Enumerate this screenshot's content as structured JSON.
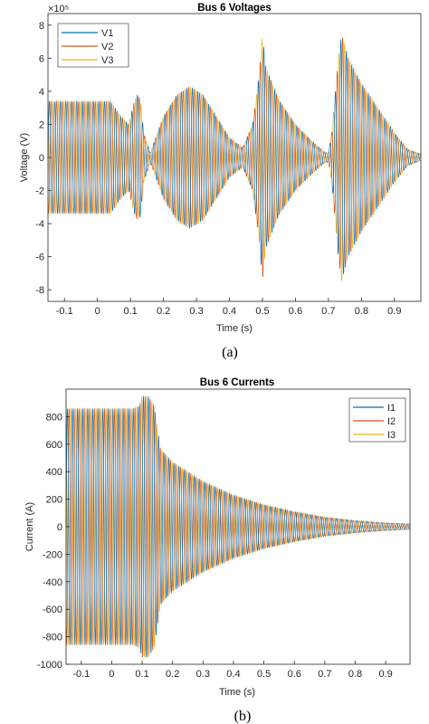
{
  "colors": {
    "series1": "#0072BD",
    "series2": "#D95319",
    "series3": "#EDB120",
    "axis": "#262626"
  },
  "chart_data": [
    {
      "type": "line",
      "title": "Bus 6 Voltages",
      "xlabel": "Time (s)",
      "ylabel": "Voltage (V)",
      "exponent_label": "×10⁵",
      "panel_label": "(a)",
      "xlim": [
        -0.15,
        0.98
      ],
      "ylim": [
        -8.7,
        8.7
      ],
      "xticks": [
        -0.1,
        0,
        0.1,
        0.2,
        0.3,
        0.4,
        0.5,
        0.6,
        0.7,
        0.8,
        0.9
      ],
      "xtick_labels": [
        "-0.1",
        "0",
        "0.1",
        "0.2",
        "0.3",
        "0.4",
        "0.5",
        "0.6",
        "0.7",
        "0.8",
        "0.9"
      ],
      "yticks": [
        -8,
        -6,
        -4,
        -2,
        0,
        2,
        4,
        6,
        8
      ],
      "ytick_labels": [
        "-8",
        "-6",
        "-4",
        "-2",
        "0",
        "2",
        "4",
        "6",
        "8"
      ],
      "legend": {
        "position": "top-left",
        "entries": [
          "V1",
          "V2",
          "V3"
        ]
      },
      "grid": false,
      "frequency_hz": 60,
      "series": [
        {
          "name": "V1",
          "phase_deg": 0
        },
        {
          "name": "V2",
          "phase_deg": -120
        },
        {
          "name": "V3",
          "phase_deg": 120
        }
      ],
      "amplitude_envelope": {
        "t": [
          -0.15,
          0.04,
          0.07,
          0.095,
          0.11,
          0.12,
          0.13,
          0.14,
          0.16,
          0.2,
          0.24,
          0.28,
          0.32,
          0.36,
          0.4,
          0.44,
          0.47,
          0.49,
          0.5,
          0.51,
          0.55,
          0.6,
          0.65,
          0.69,
          0.7,
          0.71,
          0.73,
          0.74,
          0.76,
          0.8,
          0.85,
          0.9,
          0.94,
          0.98
        ],
        "amp": [
          3.4,
          3.4,
          2.5,
          2.0,
          3.3,
          3.8,
          3.6,
          1.5,
          0.3,
          2.5,
          3.8,
          4.3,
          3.8,
          2.5,
          1.2,
          0.6,
          2.0,
          5.0,
          7.5,
          5.5,
          3.5,
          2.0,
          1.0,
          0.3,
          0.3,
          1.5,
          6.0,
          7.5,
          6.0,
          4.5,
          3.0,
          1.5,
          0.5,
          0.2
        ]
      }
    },
    {
      "type": "line",
      "title": "Bus 6 Currents",
      "xlabel": "Time (s)",
      "ylabel": "Current (A)",
      "panel_label": "(b)",
      "xlim": [
        -0.15,
        0.98
      ],
      "ylim": [
        -1000,
        1000
      ],
      "xticks": [
        -0.1,
        0,
        0.1,
        0.2,
        0.3,
        0.4,
        0.5,
        0.6,
        0.7,
        0.8,
        0.9
      ],
      "xtick_labels": [
        "-0.1",
        "0",
        "0.1",
        "0.2",
        "0.3",
        "0.4",
        "0.5",
        "0.6",
        "0.7",
        "0.8",
        "0.9"
      ],
      "yticks": [
        -1000,
        -800,
        -600,
        -400,
        -200,
        0,
        200,
        400,
        600,
        800
      ],
      "ytick_labels": [
        "-1000",
        "-800",
        "-600",
        "-400",
        "-200",
        "0",
        "200",
        "400",
        "600",
        "800"
      ],
      "legend": {
        "position": "top-right",
        "entries": [
          "I1",
          "I2",
          "I3"
        ]
      },
      "grid": false,
      "frequency_hz": 60,
      "series": [
        {
          "name": "I1",
          "phase_deg": 0
        },
        {
          "name": "I2",
          "phase_deg": -120
        },
        {
          "name": "I3",
          "phase_deg": 120
        }
      ],
      "amplitude_envelope": {
        "t": [
          -0.15,
          0.07,
          0.09,
          0.1,
          0.12,
          0.14,
          0.16,
          0.2,
          0.25,
          0.3,
          0.4,
          0.5,
          0.6,
          0.7,
          0.8,
          0.9,
          0.98
        ],
        "amp": [
          860,
          860,
          880,
          950,
          950,
          880,
          570,
          470,
          400,
          330,
          230,
          160,
          110,
          70,
          45,
          28,
          20
        ]
      }
    }
  ]
}
